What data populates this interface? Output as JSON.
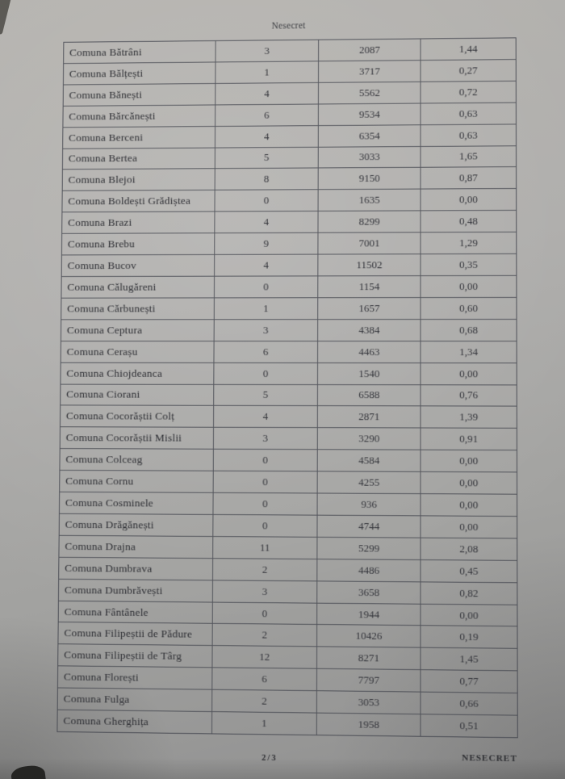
{
  "page": {
    "header_classification": "Nesecret",
    "footer_page_number": "2/3",
    "footer_classification": "NESECRET"
  },
  "colors": {
    "paper": "#aaa9a6",
    "ink": "#2e2f34",
    "table_border": "#3e414a"
  },
  "table": {
    "columns": [
      "commune_name",
      "count",
      "population",
      "percent"
    ],
    "rows": [
      {
        "name": "Comuna Bătrâni",
        "count": "3",
        "population": "2087",
        "percent": "1,44"
      },
      {
        "name": "Comuna Bălțești",
        "count": "1",
        "population": "3717",
        "percent": "0,27"
      },
      {
        "name": "Comuna Bănești",
        "count": "4",
        "population": "5562",
        "percent": "0,72"
      },
      {
        "name": "Comuna Bărcănești",
        "count": "6",
        "population": "9534",
        "percent": "0,63"
      },
      {
        "name": "Comuna Berceni",
        "count": "4",
        "population": "6354",
        "percent": "0,63"
      },
      {
        "name": "Comuna Bertea",
        "count": "5",
        "population": "3033",
        "percent": "1,65"
      },
      {
        "name": "Comuna Blejoi",
        "count": "8",
        "population": "9150",
        "percent": "0,87"
      },
      {
        "name": "Comuna Boldești Grădiștea",
        "count": "0",
        "population": "1635",
        "percent": "0,00"
      },
      {
        "name": "Comuna Brazi",
        "count": "4",
        "population": "8299",
        "percent": "0,48"
      },
      {
        "name": "Comuna Brebu",
        "count": "9",
        "population": "7001",
        "percent": "1,29"
      },
      {
        "name": "Comuna Bucov",
        "count": "4",
        "population": "11502",
        "percent": "0,35"
      },
      {
        "name": "Comuna Călugăreni",
        "count": "0",
        "population": "1154",
        "percent": "0,00"
      },
      {
        "name": "Comuna Cărbunești",
        "count": "1",
        "population": "1657",
        "percent": "0,60"
      },
      {
        "name": "Comuna Ceptura",
        "count": "3",
        "population": "4384",
        "percent": "0,68"
      },
      {
        "name": "Comuna Cerașu",
        "count": "6",
        "population": "4463",
        "percent": "1,34"
      },
      {
        "name": "Comuna Chiojdeanca",
        "count": "0",
        "population": "1540",
        "percent": "0,00"
      },
      {
        "name": "Comuna Ciorani",
        "count": "5",
        "population": "6588",
        "percent": "0,76"
      },
      {
        "name": "Comuna Cocorăștii Colț",
        "count": "4",
        "population": "2871",
        "percent": "1,39"
      },
      {
        "name": "Comuna Cocorăștii Mislii",
        "count": "3",
        "population": "3290",
        "percent": "0,91"
      },
      {
        "name": "Comuna Colceag",
        "count": "0",
        "population": "4584",
        "percent": "0,00"
      },
      {
        "name": "Comuna Cornu",
        "count": "0",
        "population": "4255",
        "percent": "0,00"
      },
      {
        "name": "Comuna Cosminele",
        "count": "0",
        "population": "936",
        "percent": "0,00"
      },
      {
        "name": "Comuna Drăgănești",
        "count": "0",
        "population": "4744",
        "percent": "0,00"
      },
      {
        "name": "Comuna Drajna",
        "count": "11",
        "population": "5299",
        "percent": "2,08"
      },
      {
        "name": "Comuna Dumbrava",
        "count": "2",
        "population": "4486",
        "percent": "0,45"
      },
      {
        "name": "Comuna Dumbrăvești",
        "count": "3",
        "population": "3658",
        "percent": "0,82"
      },
      {
        "name": "Comuna Fântânele",
        "count": "0",
        "population": "1944",
        "percent": "0,00"
      },
      {
        "name": "Comuna Filipeștii de Pădure",
        "count": "2",
        "population": "10426",
        "percent": "0,19"
      },
      {
        "name": "Comuna Filipeștii de Târg",
        "count": "12",
        "population": "8271",
        "percent": "1,45"
      },
      {
        "name": "Comuna Florești",
        "count": "6",
        "population": "7797",
        "percent": "0,77"
      },
      {
        "name": "Comuna Fulga",
        "count": "2",
        "population": "3053",
        "percent": "0,66"
      },
      {
        "name": "Comuna Gherghița",
        "count": "1",
        "population": "1958",
        "percent": "0,51"
      }
    ]
  }
}
